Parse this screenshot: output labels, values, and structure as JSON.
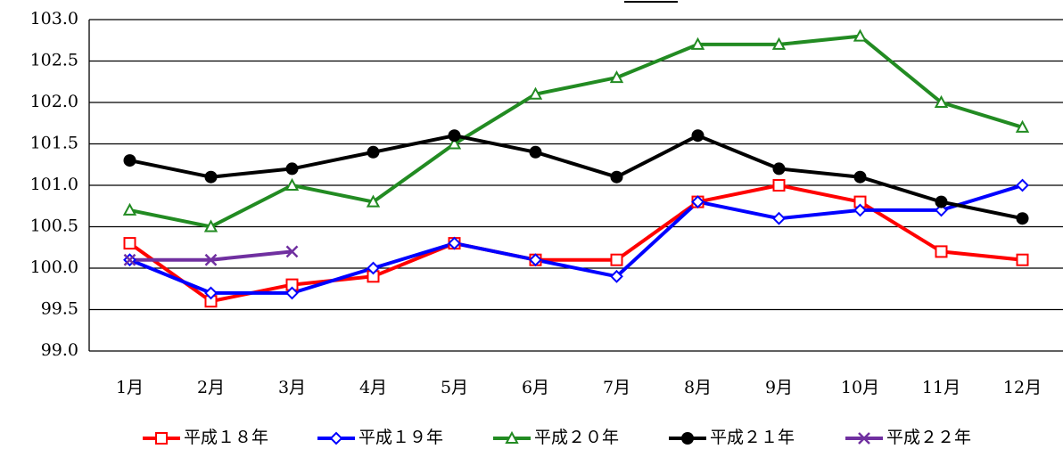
{
  "chart_data": {
    "type": "line",
    "categories": [
      "1月",
      "2月",
      "3月",
      "4月",
      "5月",
      "6月",
      "7月",
      "8月",
      "9月",
      "10月",
      "11月",
      "12月"
    ],
    "series": [
      {
        "name": "平成１８年",
        "color": "#ff0000",
        "marker": "square",
        "values": [
          100.3,
          99.6,
          99.8,
          99.9,
          100.3,
          100.1,
          100.1,
          100.8,
          101.0,
          100.8,
          100.2,
          100.1
        ]
      },
      {
        "name": "平成１９年",
        "color": "#0000ff",
        "marker": "diamond",
        "values": [
          100.1,
          99.7,
          99.7,
          100.0,
          100.3,
          100.1,
          99.9,
          100.8,
          100.6,
          100.7,
          100.7,
          101.0
        ]
      },
      {
        "name": "平成２０年",
        "color": "#228b22",
        "marker": "triangle",
        "values": [
          100.7,
          100.5,
          101.0,
          100.8,
          101.5,
          102.1,
          102.3,
          102.7,
          102.7,
          102.8,
          102.0,
          101.7
        ]
      },
      {
        "name": "平成２１年",
        "color": "#000000",
        "marker": "circle",
        "values": [
          101.3,
          101.1,
          101.2,
          101.4,
          101.6,
          101.4,
          101.1,
          101.6,
          101.2,
          101.1,
          100.8,
          100.6
        ]
      },
      {
        "name": "平成２２年",
        "color": "#7030a0",
        "marker": "x",
        "values": [
          100.1,
          100.1,
          100.2,
          null,
          null,
          null,
          null,
          null,
          null,
          null,
          null,
          null
        ]
      }
    ],
    "ylim": [
      99.0,
      103.0
    ],
    "yticks": [
      {
        "value": 99,
        "label": "99.0"
      },
      {
        "value": 99.5,
        "label": "99.5"
      },
      {
        "value": 100,
        "label": "100.0"
      },
      {
        "value": 100.5,
        "label": "100.5"
      },
      {
        "value": 101,
        "label": "101.0"
      },
      {
        "value": 101.5,
        "label": "101.5"
      },
      {
        "value": 102,
        "label": "102.0"
      },
      {
        "value": 102.5,
        "label": "102.5"
      },
      {
        "value": 103,
        "label": "103.0"
      }
    ],
    "grid": true,
    "legend": "bottom"
  }
}
